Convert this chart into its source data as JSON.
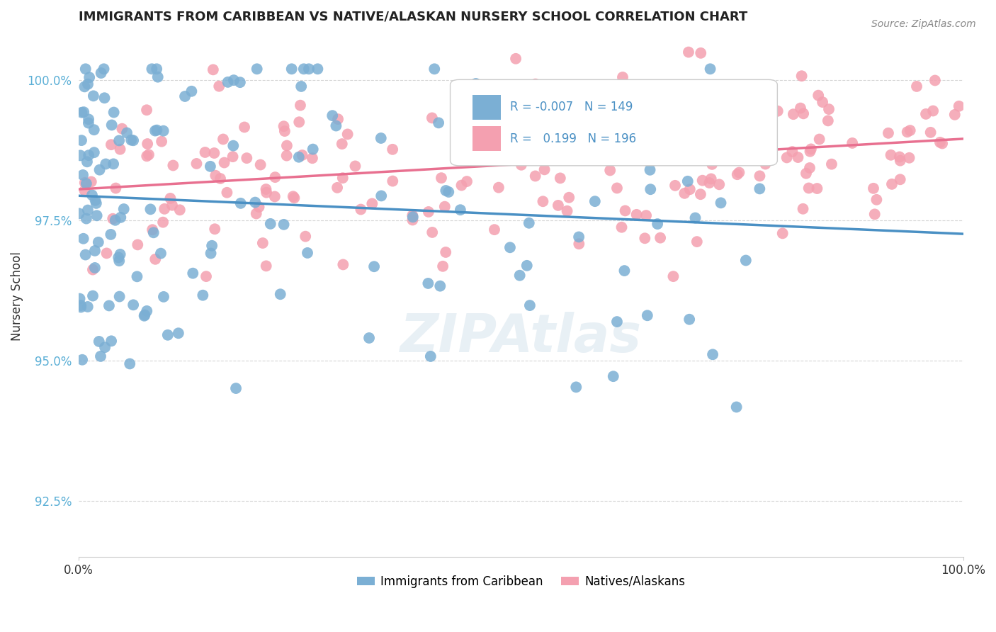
{
  "title": "IMMIGRANTS FROM CARIBBEAN VS NATIVE/ALASKAN NURSERY SCHOOL CORRELATION CHART",
  "source_text": "Source: ZipAtlas.com",
  "xlabel": "",
  "ylabel": "Nursery School",
  "xlim": [
    0.0,
    100.0
  ],
  "ylim": [
    91.5,
    100.8
  ],
  "yticks": [
    92.5,
    95.0,
    97.5,
    100.0
  ],
  "ytick_labels": [
    "92.5%",
    "95.0%",
    "97.5%",
    "100.0%"
  ],
  "blue_color": "#7bafd4",
  "pink_color": "#f4a0b0",
  "blue_line_color": "#4a90c4",
  "pink_line_color": "#e87090",
  "R_blue": -0.007,
  "N_blue": 149,
  "R_pink": 0.199,
  "N_pink": 196,
  "legend_label_blue": "Immigrants from Caribbean",
  "legend_label_pink": "Natives/Alaskans",
  "watermark": "ZIPAtlas",
  "title_fontsize": 13,
  "background_color": "#ffffff",
  "seed_blue": 42,
  "seed_pink": 99
}
